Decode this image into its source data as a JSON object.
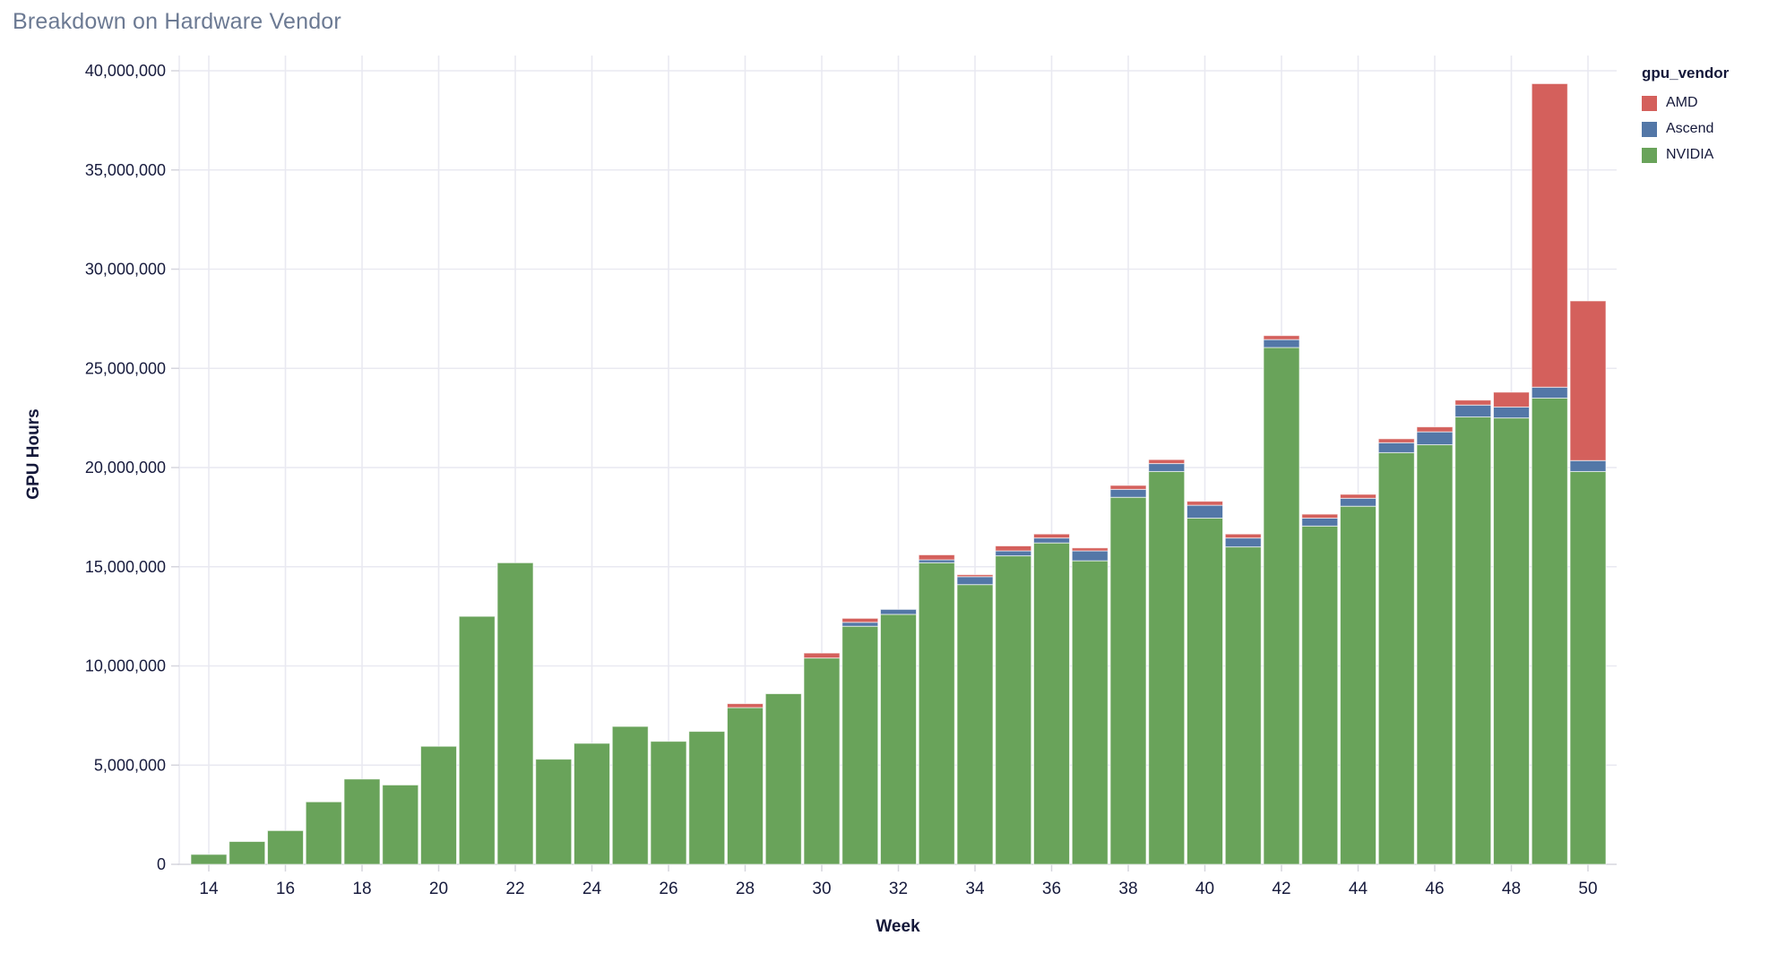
{
  "title": "Breakdown on Hardware Vendor",
  "chart_data": {
    "type": "bar",
    "stacked": true,
    "title": "Breakdown on Hardware Vendor",
    "xlabel": "Week",
    "ylabel": "GPU Hours",
    "legend_title": "gpu_vendor",
    "legend_position": "right",
    "grid": true,
    "ylim": [
      0,
      40000000
    ],
    "y_ticks": [
      0,
      5000000,
      10000000,
      15000000,
      20000000,
      25000000,
      30000000,
      35000000,
      40000000
    ],
    "x_ticks": [
      14,
      16,
      18,
      20,
      22,
      24,
      26,
      28,
      30,
      32,
      34,
      36,
      38,
      40,
      42,
      44,
      46,
      48,
      50
    ],
    "categories": [
      14,
      15,
      16,
      17,
      18,
      19,
      20,
      21,
      22,
      23,
      24,
      25,
      26,
      27,
      28,
      29,
      30,
      31,
      32,
      33,
      34,
      35,
      36,
      37,
      38,
      39,
      40,
      41,
      42,
      43,
      44,
      45,
      46,
      47,
      48,
      49,
      50
    ],
    "stack_order_bottom_to_top": [
      "NVIDIA",
      "Ascend",
      "AMD"
    ],
    "series": [
      {
        "name": "AMD",
        "color": "#d4605c",
        "values": [
          0,
          0,
          0,
          0,
          0,
          0,
          0,
          0,
          0,
          0,
          0,
          0,
          0,
          0,
          200000,
          0,
          250000,
          200000,
          0,
          250000,
          100000,
          250000,
          200000,
          150000,
          200000,
          200000,
          200000,
          200000,
          200000,
          200000,
          200000,
          200000,
          250000,
          250000,
          750000,
          15300000,
          8050000
        ]
      },
      {
        "name": "Ascend",
        "color": "#5377a7",
        "values": [
          0,
          0,
          0,
          0,
          0,
          0,
          0,
          0,
          0,
          0,
          0,
          0,
          0,
          0,
          0,
          0,
          0,
          200000,
          250000,
          150000,
          400000,
          250000,
          250000,
          500000,
          400000,
          400000,
          650000,
          450000,
          400000,
          400000,
          400000,
          500000,
          650000,
          600000,
          550000,
          550000,
          550000
        ]
      },
      {
        "name": "NVIDIA",
        "color": "#69a35a",
        "values": [
          500000,
          1150000,
          1700000,
          3150000,
          4300000,
          4000000,
          5950000,
          12500000,
          15200000,
          5300000,
          6100000,
          6950000,
          6200000,
          6700000,
          7900000,
          8600000,
          10400000,
          12000000,
          12600000,
          15200000,
          14100000,
          15550000,
          16200000,
          15300000,
          18500000,
          19800000,
          17450000,
          16000000,
          26050000,
          17050000,
          18050000,
          20750000,
          21150000,
          22550000,
          22500000,
          23500000,
          19800000
        ]
      }
    ],
    "colors": {
      "grid": "#e9e9f1",
      "axis_domain": "#d6d6de",
      "tick_text": "#171b3d",
      "title_text": "#6c7a93"
    }
  }
}
